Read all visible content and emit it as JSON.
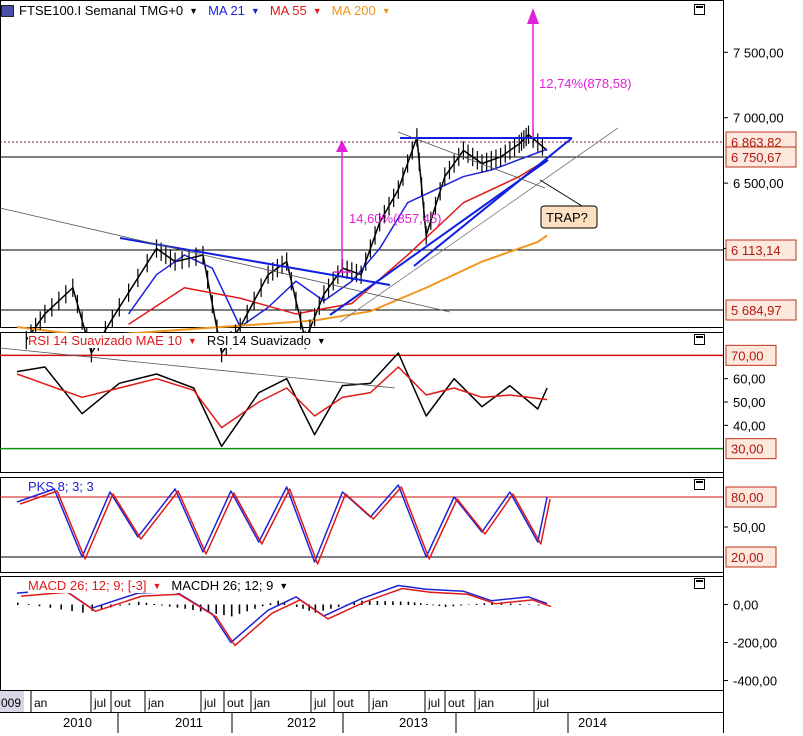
{
  "main_panel": {
    "title": "FTSE100.I Semanal TMG+0",
    "indicators": [
      {
        "label": "MA 21",
        "color": "#1e22d8"
      },
      {
        "label": "MA 55",
        "color": "#e01919"
      },
      {
        "label": "MA 200",
        "color": "#f0961e"
      }
    ],
    "price_axis": [
      "7 500,00",
      "7 000,00",
      "6 500,00",
      "6 000,00"
    ],
    "level_labels": [
      "6 863,82",
      "6 750,67",
      "6 113,14",
      "5 684,97"
    ],
    "annotations": {
      "target_up": "12,74%(878,58)",
      "prior_move": "14,60%(857,45)",
      "trap": "TRAP?"
    }
  },
  "rsi_panel": {
    "title_a": "RSI 14 Suavizado MAE 10",
    "title_b": "RSI 14 Suavizado",
    "axis": [
      "60,00",
      "50,00",
      "40,00"
    ],
    "level_labels": [
      "70,00",
      "30,00"
    ]
  },
  "pks_panel": {
    "title": "PKS 8; 3; 3",
    "axis": [
      "50,00"
    ],
    "level_labels": [
      "80,00",
      "20,00"
    ]
  },
  "macd_panel": {
    "title_a": "MACD 26; 12; 9; [-3]",
    "title_b": "MACDH 26; 12; 9",
    "axis": [
      "0,00",
      "-200,00",
      "-400,00"
    ]
  },
  "time_axis": {
    "months": [
      "009",
      "an",
      "jul",
      "out",
      "jan",
      "jul",
      "out",
      "jan",
      "jul",
      "out",
      "jan",
      "jul",
      "out",
      "jan",
      "jul"
    ],
    "years": [
      "2010",
      "2011",
      "2012",
      "2013",
      "2014"
    ]
  },
  "colors": {
    "ma21": "#1e22d8",
    "ma55": "#e01919",
    "ma200": "#f0961e",
    "magenta": "#e020d8",
    "trendline": "#1020e0",
    "label_fill": "#fde8de",
    "label_border": "#c03018"
  },
  "chart_data": [
    {
      "type": "line",
      "title": "FTSE100.I Semanal TMG+0",
      "x_range": [
        "2009-10",
        "2014-10"
      ],
      "y_range": [
        5400,
        7900
      ],
      "series": [
        {
          "name": "FTSE100.I",
          "x": [
            "2009-11",
            "2010-01",
            "2010-04",
            "2010-06",
            "2010-09",
            "2011-01",
            "2011-03",
            "2011-06",
            "2011-08",
            "2011-10",
            "2012-01",
            "2012-03",
            "2012-05",
            "2012-07",
            "2012-09",
            "2012-11",
            "2013-01",
            "2013-03",
            "2013-05",
            "2013-06",
            "2013-08",
            "2013-10",
            "2013-12",
            "2014-02",
            "2014-04",
            "2014-05",
            "2014-07"
          ],
          "values": [
            5300,
            5500,
            5700,
            5200,
            5550,
            6000,
            5900,
            5950,
            5200,
            5400,
            5800,
            5900,
            5300,
            5650,
            5850,
            5800,
            6200,
            6450,
            6850,
            6100,
            6550,
            6750,
            6650,
            6700,
            6800,
            6870,
            6750
          ]
        },
        {
          "name": "MA 21",
          "x": [
            "2010-10",
            "2011-01",
            "2011-04",
            "2011-07",
            "2011-10",
            "2012-01",
            "2012-04",
            "2012-07",
            "2012-10",
            "2013-01",
            "2013-04",
            "2013-07",
            "2013-10",
            "2014-01",
            "2014-04",
            "2014-07"
          ],
          "values": [
            5500,
            5800,
            5950,
            5850,
            5400,
            5550,
            5750,
            5600,
            5750,
            6000,
            6350,
            6450,
            6550,
            6600,
            6680,
            6760
          ]
        },
        {
          "name": "MA 55",
          "x": [
            "2010-10",
            "2011-04",
            "2011-10",
            "2012-04",
            "2012-10",
            "2013-04",
            "2013-10",
            "2014-04",
            "2014-07"
          ],
          "values": [
            5420,
            5700,
            5620,
            5500,
            5580,
            5950,
            6350,
            6550,
            6680
          ]
        },
        {
          "name": "MA 200",
          "x": [
            "2009-10",
            "2010-06",
            "2011-06",
            "2012-06",
            "2012-12",
            "2013-06",
            "2013-12",
            "2014-06",
            "2014-07"
          ],
          "values": [
            5400,
            5330,
            5390,
            5450,
            5520,
            5700,
            5900,
            6050,
            6100
          ]
        }
      ],
      "levels": [
        6863.82,
        6750.67,
        6113.14,
        5684.97
      ]
    },
    {
      "type": "line",
      "title": "RSI 14 Suavizado MAE 10",
      "y_range": [
        20,
        80
      ],
      "levels": [
        70,
        30
      ],
      "series": [
        {
          "name": "RSI 14 Suavizado",
          "x": [
            "2009-10",
            "2010-01",
            "2010-05",
            "2010-09",
            "2011-01",
            "2011-05",
            "2011-08",
            "2011-12",
            "2012-03",
            "2012-06",
            "2012-09",
            "2012-12",
            "2013-03",
            "2013-06",
            "2013-09",
            "2013-12",
            "2014-03",
            "2014-06",
            "2014-07"
          ],
          "values": [
            63,
            65,
            45,
            58,
            62,
            56,
            31,
            54,
            60,
            36,
            57,
            58,
            71,
            44,
            60,
            48,
            57,
            47,
            56
          ]
        },
        {
          "name": "MAE 10",
          "x": [
            "2009-10",
            "2010-05",
            "2010-09",
            "2011-01",
            "2011-05",
            "2011-08",
            "2011-12",
            "2012-03",
            "2012-06",
            "2012-09",
            "2012-12",
            "2013-03",
            "2013-06",
            "2013-09",
            "2013-12",
            "2014-03",
            "2014-07"
          ],
          "values": [
            62,
            52,
            56,
            60,
            55,
            39,
            50,
            56,
            44,
            52,
            54,
            65,
            53,
            56,
            52,
            53,
            51
          ]
        }
      ]
    },
    {
      "type": "line",
      "title": "PKS 8; 3; 3",
      "y_range": [
        5,
        100
      ],
      "levels": [
        80,
        20
      ],
      "series": [
        {
          "name": "PKS",
          "x": [
            "2009-10",
            "2010-02",
            "2010-05",
            "2010-08",
            "2010-11",
            "2011-03",
            "2011-06",
            "2011-09",
            "2011-12",
            "2012-03",
            "2012-06",
            "2012-09",
            "2012-12",
            "2013-03",
            "2013-06",
            "2013-09",
            "2013-12",
            "2014-03",
            "2014-06",
            "2014-07"
          ],
          "values": [
            75,
            88,
            20,
            85,
            40,
            88,
            25,
            86,
            35,
            90,
            15,
            85,
            60,
            92,
            20,
            80,
            45,
            85,
            35,
            80
          ]
        }
      ]
    },
    {
      "type": "line",
      "title": "MACD 26; 12; 9; [-3]",
      "y_range": [
        -450,
        150
      ],
      "series": [
        {
          "name": "MACD",
          "x": [
            "2009-10",
            "2010-03",
            "2010-06",
            "2010-11",
            "2011-03",
            "2011-07",
            "2011-09",
            "2012-01",
            "2012-04",
            "2012-07",
            "2012-11",
            "2013-03",
            "2013-06",
            "2013-10",
            "2014-01",
            "2014-05",
            "2014-07"
          ],
          "values": [
            60,
            80,
            -20,
            60,
            70,
            -50,
            -200,
            -30,
            40,
            -60,
            30,
            100,
            80,
            70,
            20,
            40,
            5
          ]
        },
        {
          "name": "MACDH 26; 12; 9",
          "x": [
            "2009-10",
            "2010-05",
            "2010-11",
            "2011-04",
            "2011-09",
            "2012-02",
            "2012-06",
            "2012-11",
            "2013-04",
            "2013-08",
            "2014-01",
            "2014-07"
          ],
          "values": [
            10,
            -40,
            15,
            -20,
            -60,
            20,
            -40,
            20,
            15,
            -10,
            10,
            -5
          ]
        }
      ]
    }
  ]
}
